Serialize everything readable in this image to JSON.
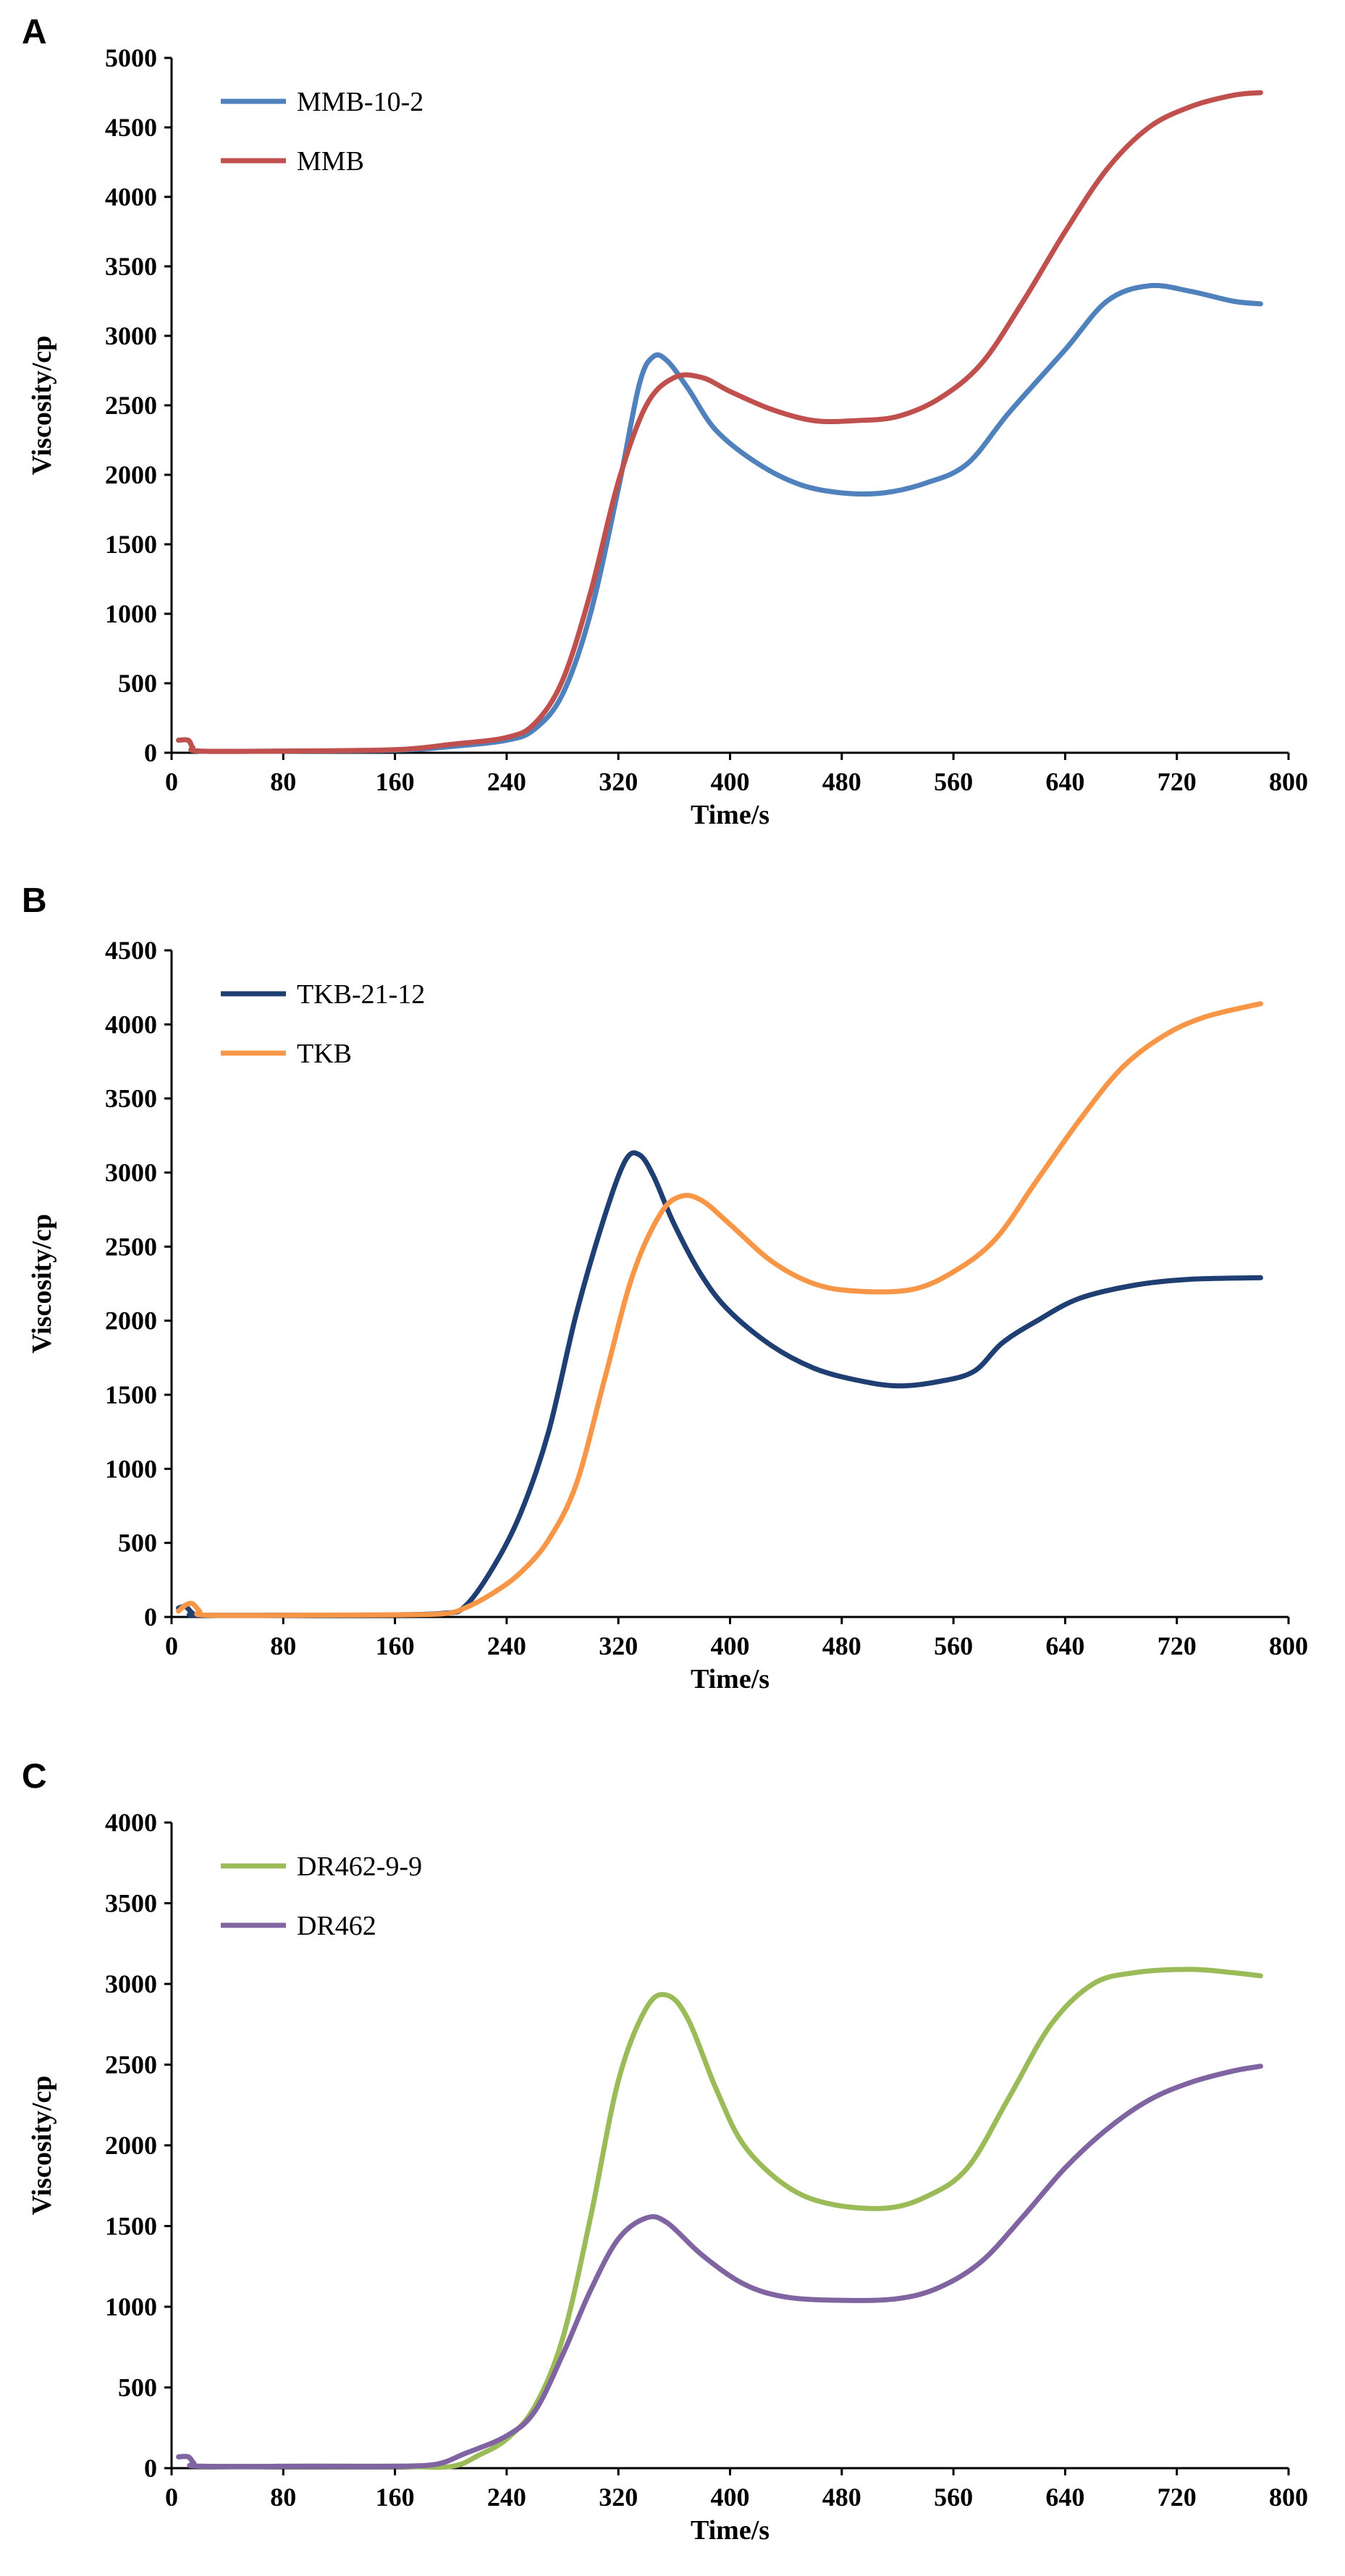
{
  "chart_data": [
    {
      "type": "line",
      "panel": "A",
      "xlabel": "Time/s",
      "ylabel": "Viscosity/cp",
      "xlim": [
        0,
        800
      ],
      "ylim": [
        0,
        5000
      ],
      "xticks": [
        0,
        80,
        160,
        240,
        320,
        400,
        480,
        560,
        640,
        720,
        800
      ],
      "yticks": [
        0,
        500,
        1000,
        1500,
        2000,
        2500,
        3000,
        3500,
        4000,
        4500,
        5000
      ],
      "grid": false,
      "legend": "top-left",
      "series": [
        {
          "name": "MMB-10-2",
          "color": "#4F81BD",
          "points": [
            [
              5,
              90
            ],
            [
              12,
              90
            ],
            [
              15,
              40
            ],
            [
              20,
              12
            ],
            [
              80,
              12
            ],
            [
              160,
              18
            ],
            [
              200,
              45
            ],
            [
              240,
              90
            ],
            [
              260,
              170
            ],
            [
              280,
              420
            ],
            [
              300,
              1000
            ],
            [
              320,
              1900
            ],
            [
              335,
              2650
            ],
            [
              345,
              2850
            ],
            [
              355,
              2820
            ],
            [
              370,
              2620
            ],
            [
              390,
              2320
            ],
            [
              420,
              2080
            ],
            [
              450,
              1930
            ],
            [
              480,
              1870
            ],
            [
              510,
              1870
            ],
            [
              540,
              1940
            ],
            [
              570,
              2080
            ],
            [
              600,
              2450
            ],
            [
              640,
              2900
            ],
            [
              670,
              3250
            ],
            [
              700,
              3360
            ],
            [
              730,
              3320
            ],
            [
              760,
              3250
            ],
            [
              780,
              3230
            ]
          ]
        },
        {
          "name": "MMB",
          "color": "#C0504D",
          "points": [
            [
              5,
              90
            ],
            [
              12,
              90
            ],
            [
              15,
              40
            ],
            [
              20,
              12
            ],
            [
              80,
              12
            ],
            [
              160,
              22
            ],
            [
              200,
              60
            ],
            [
              240,
              110
            ],
            [
              260,
              210
            ],
            [
              280,
              520
            ],
            [
              300,
              1150
            ],
            [
              320,
              1950
            ],
            [
              340,
              2500
            ],
            [
              360,
              2700
            ],
            [
              380,
              2700
            ],
            [
              400,
              2600
            ],
            [
              430,
              2470
            ],
            [
              460,
              2390
            ],
            [
              490,
              2390
            ],
            [
              520,
              2420
            ],
            [
              550,
              2550
            ],
            [
              580,
              2800
            ],
            [
              610,
              3250
            ],
            [
              640,
              3750
            ],
            [
              670,
              4200
            ],
            [
              700,
              4500
            ],
            [
              730,
              4650
            ],
            [
              760,
              4730
            ],
            [
              780,
              4750
            ]
          ]
        }
      ]
    },
    {
      "type": "line",
      "panel": "B",
      "xlabel": "Time/s",
      "ylabel": "Viscosity/cp",
      "xlim": [
        0,
        800
      ],
      "ylim": [
        0,
        4500
      ],
      "xticks": [
        0,
        80,
        160,
        240,
        320,
        400,
        480,
        560,
        640,
        720,
        800
      ],
      "yticks": [
        0,
        500,
        1000,
        1500,
        2000,
        2500,
        3000,
        3500,
        4000,
        4500
      ],
      "grid": false,
      "legend": "top-left",
      "series": [
        {
          "name": "TKB-21-12",
          "color": "#1F3F73",
          "points": [
            [
              5,
              60
            ],
            [
              10,
              70
            ],
            [
              15,
              25
            ],
            [
              20,
              12
            ],
            [
              100,
              12
            ],
            [
              160,
              14
            ],
            [
              195,
              25
            ],
            [
              210,
              70
            ],
            [
              230,
              330
            ],
            [
              250,
              700
            ],
            [
              270,
              1250
            ],
            [
              290,
              2050
            ],
            [
              310,
              2700
            ],
            [
              325,
              3080
            ],
            [
              335,
              3120
            ],
            [
              345,
              2980
            ],
            [
              360,
              2650
            ],
            [
              380,
              2300
            ],
            [
              400,
              2060
            ],
            [
              430,
              1830
            ],
            [
              460,
              1680
            ],
            [
              490,
              1600
            ],
            [
              520,
              1560
            ],
            [
              550,
              1590
            ],
            [
              575,
              1660
            ],
            [
              595,
              1850
            ],
            [
              620,
              2000
            ],
            [
              650,
              2150
            ],
            [
              690,
              2240
            ],
            [
              730,
              2280
            ],
            [
              780,
              2290
            ]
          ]
        },
        {
          "name": "TKB",
          "color": "#F79646",
          "points": [
            [
              5,
              40
            ],
            [
              10,
              80
            ],
            [
              15,
              90
            ],
            [
              20,
              40
            ],
            [
              25,
              12
            ],
            [
              100,
              12
            ],
            [
              160,
              14
            ],
            [
              195,
              22
            ],
            [
              210,
              60
            ],
            [
              230,
              160
            ],
            [
              250,
              300
            ],
            [
              270,
              520
            ],
            [
              290,
              900
            ],
            [
              310,
              1600
            ],
            [
              330,
              2300
            ],
            [
              350,
              2720
            ],
            [
              365,
              2840
            ],
            [
              380,
              2810
            ],
            [
              400,
              2650
            ],
            [
              430,
              2400
            ],
            [
              460,
              2250
            ],
            [
              490,
              2200
            ],
            [
              530,
              2210
            ],
            [
              560,
              2330
            ],
            [
              590,
              2550
            ],
            [
              620,
              2950
            ],
            [
              650,
              3350
            ],
            [
              680,
              3700
            ],
            [
              710,
              3920
            ],
            [
              740,
              4050
            ],
            [
              780,
              4140
            ]
          ]
        }
      ]
    },
    {
      "type": "line",
      "panel": "C",
      "xlabel": "Time/s",
      "ylabel": "Viscosity/cp",
      "xlim": [
        0,
        800
      ],
      "ylim": [
        0,
        4000
      ],
      "xticks": [
        0,
        80,
        160,
        240,
        320,
        400,
        480,
        560,
        640,
        720,
        800
      ],
      "yticks": [
        0,
        500,
        1000,
        1500,
        2000,
        2500,
        3000,
        3500,
        4000
      ],
      "grid": false,
      "legend": "top-left",
      "series": [
        {
          "name": "DR462-9-9",
          "color": "#9BBB59",
          "points": [
            [
              5,
              70
            ],
            [
              12,
              70
            ],
            [
              16,
              30
            ],
            [
              20,
              12
            ],
            [
              100,
              12
            ],
            [
              160,
              12
            ],
            [
              200,
              10
            ],
            [
              220,
              80
            ],
            [
              240,
              180
            ],
            [
              260,
              380
            ],
            [
              280,
              800
            ],
            [
              300,
              1550
            ],
            [
              320,
              2400
            ],
            [
              340,
              2850
            ],
            [
              355,
              2930
            ],
            [
              370,
              2780
            ],
            [
              390,
              2350
            ],
            [
              410,
              2000
            ],
            [
              440,
              1750
            ],
            [
              470,
              1640
            ],
            [
              510,
              1610
            ],
            [
              540,
              1680
            ],
            [
              570,
              1860
            ],
            [
              600,
              2300
            ],
            [
              630,
              2750
            ],
            [
              660,
              3000
            ],
            [
              690,
              3070
            ],
            [
              730,
              3090
            ],
            [
              760,
              3070
            ],
            [
              780,
              3050
            ]
          ]
        },
        {
          "name": "DR462",
          "color": "#8064A2",
          "points": [
            [
              5,
              70
            ],
            [
              12,
              70
            ],
            [
              16,
              30
            ],
            [
              20,
              12
            ],
            [
              100,
              12
            ],
            [
              160,
              12
            ],
            [
              190,
              25
            ],
            [
              210,
              90
            ],
            [
              240,
              200
            ],
            [
              260,
              350
            ],
            [
              280,
              700
            ],
            [
              300,
              1100
            ],
            [
              320,
              1420
            ],
            [
              340,
              1550
            ],
            [
              355,
              1520
            ],
            [
              380,
              1320
            ],
            [
              410,
              1140
            ],
            [
              440,
              1060
            ],
            [
              480,
              1040
            ],
            [
              520,
              1050
            ],
            [
              550,
              1120
            ],
            [
              580,
              1280
            ],
            [
              610,
              1560
            ],
            [
              640,
              1860
            ],
            [
              670,
              2100
            ],
            [
              700,
              2280
            ],
            [
              730,
              2390
            ],
            [
              760,
              2460
            ],
            [
              780,
              2490
            ]
          ]
        }
      ]
    }
  ]
}
